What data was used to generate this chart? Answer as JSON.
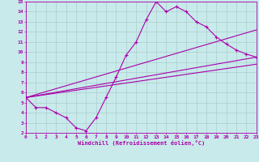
{
  "xlabel": "Windchill (Refroidissement éolien,°C)",
  "xlim": [
    0,
    23
  ],
  "ylim": [
    2,
    15
  ],
  "xticks": [
    0,
    1,
    2,
    3,
    4,
    5,
    6,
    7,
    8,
    9,
    10,
    11,
    12,
    13,
    14,
    15,
    16,
    17,
    18,
    19,
    20,
    21,
    22,
    23
  ],
  "yticks": [
    2,
    3,
    4,
    5,
    6,
    7,
    8,
    9,
    10,
    11,
    12,
    13,
    14,
    15
  ],
  "bg_color": "#c8eaea",
  "grid_color": "#aacccc",
  "line_color": "#aa00aa",
  "line1_x": [
    0,
    1,
    2,
    3,
    4,
    5,
    6,
    7,
    8,
    9,
    10,
    11,
    12,
    13,
    14,
    15,
    16,
    17,
    18,
    19,
    20,
    21,
    22,
    23
  ],
  "line1_y": [
    5.5,
    4.5,
    4.5,
    4.0,
    3.5,
    2.5,
    2.2,
    3.5,
    5.5,
    7.5,
    9.7,
    11.0,
    13.2,
    15.0,
    14.0,
    14.5,
    14.0,
    13.0,
    12.5,
    11.5,
    10.8,
    10.2,
    9.8,
    9.5
  ],
  "line2_x": [
    0,
    23
  ],
  "line2_y": [
    5.5,
    12.2
  ],
  "line3_x": [
    0,
    23
  ],
  "line3_y": [
    5.5,
    9.5
  ],
  "line4_x": [
    0,
    23
  ],
  "line4_y": [
    5.5,
    8.8
  ]
}
